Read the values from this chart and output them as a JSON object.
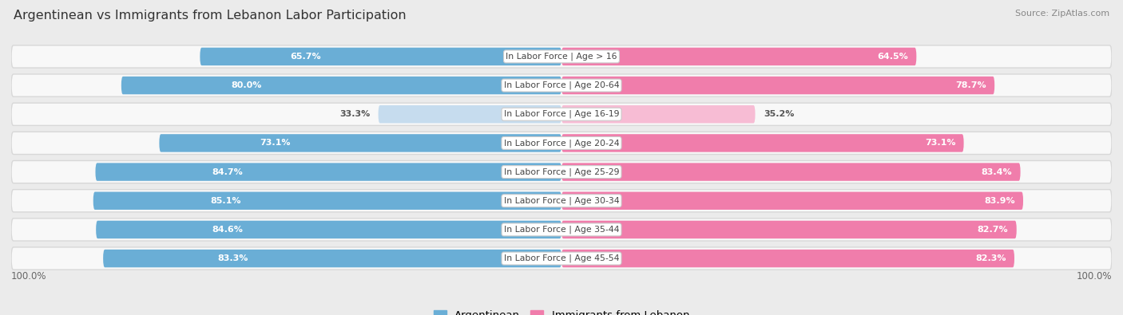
{
  "title": "Argentinean vs Immigrants from Lebanon Labor Participation",
  "source": "Source: ZipAtlas.com",
  "categories": [
    "In Labor Force | Age > 16",
    "In Labor Force | Age 20-64",
    "In Labor Force | Age 16-19",
    "In Labor Force | Age 20-24",
    "In Labor Force | Age 25-29",
    "In Labor Force | Age 30-34",
    "In Labor Force | Age 35-44",
    "In Labor Force | Age 45-54"
  ],
  "argentinean": [
    65.7,
    80.0,
    33.3,
    73.1,
    84.7,
    85.1,
    84.6,
    83.3
  ],
  "lebanon": [
    64.5,
    78.7,
    35.2,
    73.1,
    83.4,
    83.9,
    82.7,
    82.3
  ],
  "arg_color": "#6aaed6",
  "arg_color_light": "#c6dcee",
  "leb_color": "#f07dab",
  "leb_color_light": "#f7bcd4",
  "bg_color": "#ebebeb",
  "row_bg": "#f8f8f8",
  "row_border": "#d8d8d8",
  "max_val": 100.0,
  "legend_arg": "Argentinean",
  "legend_leb": "Immigrants from Lebanon",
  "bottom_label": "100.0%"
}
